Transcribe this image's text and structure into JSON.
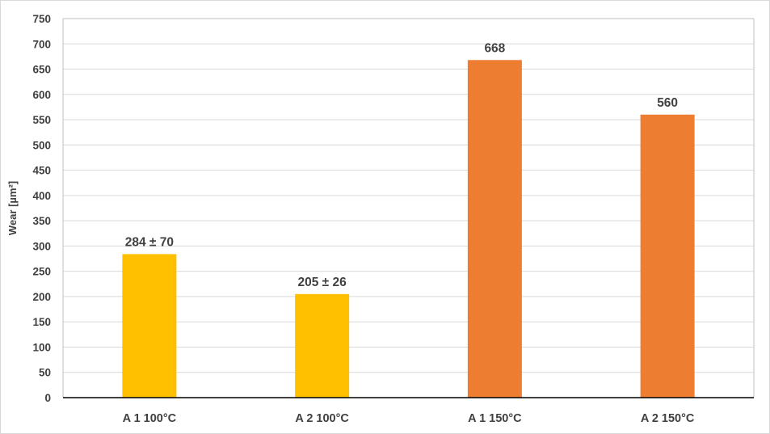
{
  "chart_data": {
    "type": "bar",
    "title": "",
    "xlabel": "",
    "ylabel": "Wear [µm²]",
    "ylim": [
      0,
      750
    ],
    "yticks": [
      0,
      50,
      100,
      150,
      200,
      250,
      300,
      350,
      400,
      450,
      500,
      550,
      600,
      650,
      700,
      750
    ],
    "grid": true,
    "legend": "none",
    "categories": [
      "A 1 100°C",
      "A 2 100°C",
      "A 1 150°C",
      "A 2 150°C"
    ],
    "values": [
      284,
      205,
      668,
      560
    ],
    "data_labels": [
      "284 ± 70",
      "205 ± 26",
      "668",
      "560"
    ],
    "colors": [
      "#FFC000",
      "#FFC000",
      "#ED7D31",
      "#ED7D31"
    ]
  }
}
